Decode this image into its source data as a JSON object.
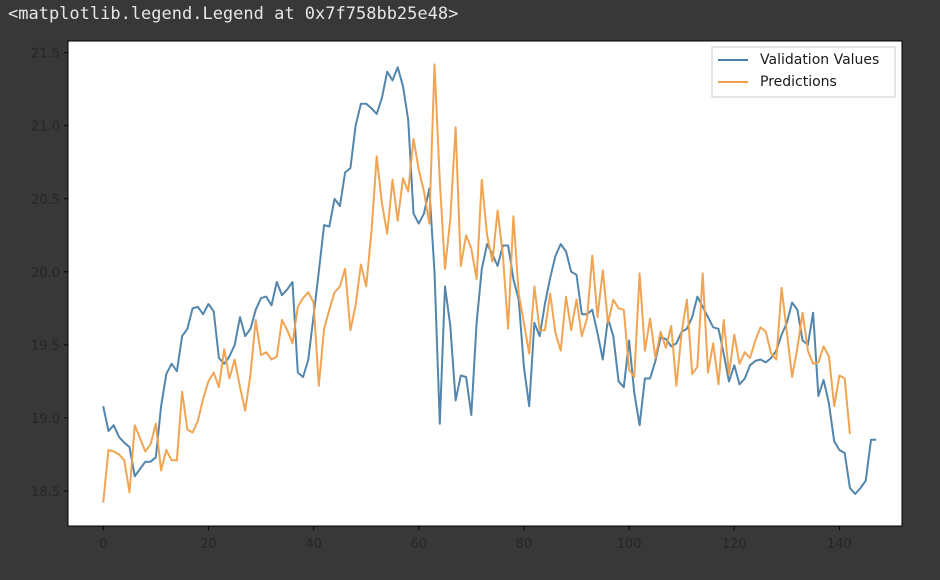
{
  "output_text": "<matplotlib.legend.Legend at 0x7f758bb25e48>",
  "colors": {
    "background": "#383838",
    "plot_bg": "#ffffff",
    "axis": "#000000",
    "tick_text": "#262626",
    "validation": "#4a7fa8",
    "predictions": "#f0a04b"
  },
  "chart_data": {
    "type": "line",
    "title": "",
    "xlabel": "",
    "ylabel": "",
    "xlim": [
      -6.7,
      151.9
    ],
    "ylim": [
      18.26,
      21.58
    ],
    "xticks": [
      0,
      20,
      40,
      60,
      80,
      100,
      120,
      140
    ],
    "yticks": [
      18.5,
      19.0,
      19.5,
      20.0,
      20.5,
      21.0,
      21.5
    ],
    "ytick_labels": [
      "18.5",
      "19.0",
      "19.5",
      "20.0",
      "20.5",
      "21.0",
      "21.5"
    ],
    "grid": false,
    "legend_position": "top-right",
    "series": [
      {
        "name": "Validation Values",
        "color": "#4a7fa8",
        "values": [
          19.08,
          18.91,
          18.95,
          18.87,
          18.83,
          18.8,
          18.6,
          18.65,
          18.7,
          18.7,
          18.73,
          19.08,
          19.3,
          19.37,
          19.32,
          19.56,
          19.61,
          19.75,
          19.76,
          19.71,
          19.78,
          19.73,
          19.41,
          19.37,
          19.42,
          19.5,
          19.69,
          19.56,
          19.61,
          19.74,
          19.82,
          19.83,
          19.77,
          19.93,
          19.84,
          19.88,
          19.93,
          19.31,
          19.28,
          19.4,
          19.7,
          20.0,
          20.32,
          20.31,
          20.5,
          20.45,
          20.68,
          20.71,
          21.0,
          21.15,
          21.15,
          21.12,
          21.08,
          21.19,
          21.37,
          21.31,
          21.4,
          21.27,
          21.04,
          20.4,
          20.33,
          20.4,
          20.57,
          20.0,
          18.96,
          19.9,
          19.63,
          19.12,
          19.29,
          19.28,
          19.02,
          19.65,
          20.02,
          20.19,
          20.12,
          20.04,
          20.18,
          20.18,
          19.95,
          19.81,
          19.35,
          19.08,
          19.65,
          19.56,
          19.78,
          19.96,
          20.11,
          20.19,
          20.14,
          20.0,
          19.98,
          19.71,
          19.71,
          19.74,
          19.58,
          19.4,
          19.68,
          19.56,
          19.25,
          19.21,
          19.53,
          19.17,
          18.95,
          19.27,
          19.27,
          19.39,
          19.55,
          19.54,
          19.49,
          19.51,
          19.59,
          19.61,
          19.69,
          19.83,
          19.76,
          19.69,
          19.62,
          19.61,
          19.44,
          19.25,
          19.36,
          19.23,
          19.27,
          19.36,
          19.39,
          19.4,
          19.38,
          19.41,
          19.46,
          19.57,
          19.65,
          19.79,
          19.74,
          19.53,
          19.5,
          19.72,
          19.15,
          19.26,
          19.1,
          18.84,
          18.78,
          18.76,
          18.52,
          18.48,
          18.52,
          18.57,
          18.85,
          18.85
        ]
      },
      {
        "name": "Predictions",
        "color": "#f0a04b",
        "values": [
          18.42,
          18.78,
          18.77,
          18.75,
          18.71,
          18.49,
          18.95,
          18.86,
          18.77,
          18.82,
          18.96,
          18.64,
          18.78,
          18.71,
          18.71,
          19.18,
          18.92,
          18.9,
          18.98,
          19.13,
          19.25,
          19.31,
          19.21,
          19.47,
          19.27,
          19.4,
          19.21,
          19.05,
          19.3,
          19.67,
          19.43,
          19.45,
          19.4,
          19.42,
          19.67,
          19.6,
          19.51,
          19.76,
          19.82,
          19.86,
          19.79,
          19.22,
          19.61,
          19.74,
          19.86,
          19.9,
          20.02,
          19.6,
          19.77,
          20.05,
          19.9,
          20.27,
          20.79,
          20.47,
          20.26,
          20.63,
          20.35,
          20.64,
          20.55,
          20.91,
          20.7,
          20.55,
          20.33,
          21.42,
          20.62,
          20.02,
          20.36,
          20.99,
          20.04,
          20.25,
          20.16,
          19.95,
          20.63,
          20.25,
          20.07,
          20.42,
          20.11,
          19.61,
          20.38,
          19.85,
          19.65,
          19.44,
          19.9,
          19.6,
          19.6,
          19.85,
          19.58,
          19.46,
          19.83,
          19.6,
          19.81,
          19.56,
          19.68,
          20.11,
          19.69,
          20.01,
          19.65,
          19.81,
          19.75,
          19.74,
          19.33,
          19.28,
          19.99,
          19.46,
          19.68,
          19.41,
          19.59,
          19.48,
          19.63,
          19.22,
          19.59,
          19.81,
          19.3,
          19.35,
          19.99,
          19.31,
          19.51,
          19.23,
          19.67,
          19.3,
          19.57,
          19.37,
          19.45,
          19.41,
          19.53,
          19.62,
          19.59,
          19.44,
          19.4,
          19.89,
          19.59,
          19.28,
          19.48,
          19.72,
          19.46,
          19.37,
          19.38,
          19.49,
          19.42,
          19.08,
          19.29,
          19.27,
          18.89
        ]
      }
    ]
  }
}
